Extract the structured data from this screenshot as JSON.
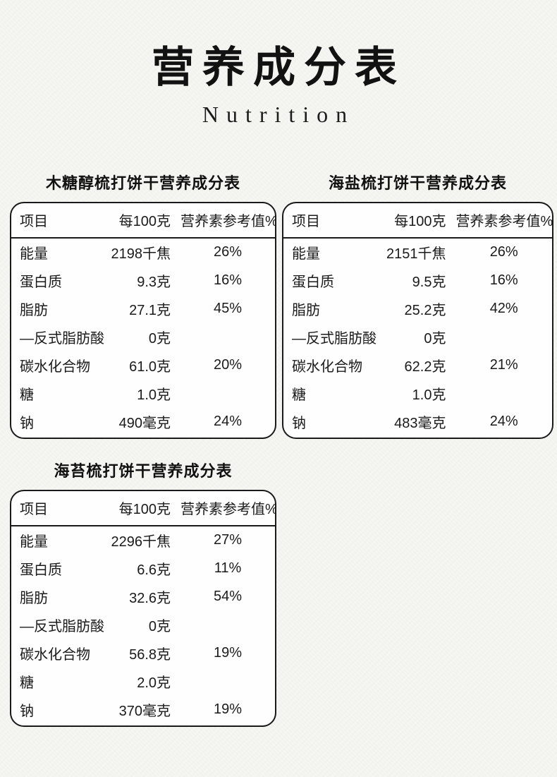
{
  "page": {
    "title": "营养成分表",
    "subtitle": "Nutrition"
  },
  "table_headers": {
    "item": "项目",
    "per100g": "每100克",
    "nrv": "营养素参考值%"
  },
  "tables": [
    {
      "title": "木糖醇梳打饼干营养成分表",
      "rows": [
        {
          "label": "能量",
          "value": "2198千焦",
          "nrv": "26%"
        },
        {
          "label": "蛋白质",
          "value": "9.3克",
          "nrv": "16%"
        },
        {
          "label": "脂肪",
          "value": "27.1克",
          "nrv": "45%"
        },
        {
          "label": "—反式脂肪酸",
          "value": "0克",
          "nrv": ""
        },
        {
          "label": "碳水化合物",
          "value": "61.0克",
          "nrv": "20%"
        },
        {
          "label": "糖",
          "value": "1.0克",
          "nrv": ""
        },
        {
          "label": "钠",
          "value": "490毫克",
          "nrv": "24%"
        }
      ]
    },
    {
      "title": "海盐梳打饼干营养成分表",
      "rows": [
        {
          "label": "能量",
          "value": "2151千焦",
          "nrv": "26%"
        },
        {
          "label": "蛋白质",
          "value": "9.5克",
          "nrv": "16%"
        },
        {
          "label": "脂肪",
          "value": "25.2克",
          "nrv": "42%"
        },
        {
          "label": "—反式脂肪酸",
          "value": "0克",
          "nrv": ""
        },
        {
          "label": "碳水化合物",
          "value": "62.2克",
          "nrv": "21%"
        },
        {
          "label": "糖",
          "value": "1.0克",
          "nrv": ""
        },
        {
          "label": "钠",
          "value": "483毫克",
          "nrv": "24%"
        }
      ]
    },
    {
      "title": "海苔梳打饼干营养成分表",
      "rows": [
        {
          "label": "能量",
          "value": "2296千焦",
          "nrv": "27%"
        },
        {
          "label": "蛋白质",
          "value": "6.6克",
          "nrv": "11%"
        },
        {
          "label": "脂肪",
          "value": "32.6克",
          "nrv": "54%"
        },
        {
          "label": "—反式脂肪酸",
          "value": "0克",
          "nrv": ""
        },
        {
          "label": "碳水化合物",
          "value": "56.8克",
          "nrv": "19%"
        },
        {
          "label": "糖",
          "value": "2.0克",
          "nrv": ""
        },
        {
          "label": "钠",
          "value": "370毫克",
          "nrv": "19%"
        }
      ]
    }
  ],
  "colors": {
    "text": "#1a1a1a",
    "border": "#1a1a1a",
    "page_background": "#f6f6f3",
    "table_background": "#fefefe"
  }
}
